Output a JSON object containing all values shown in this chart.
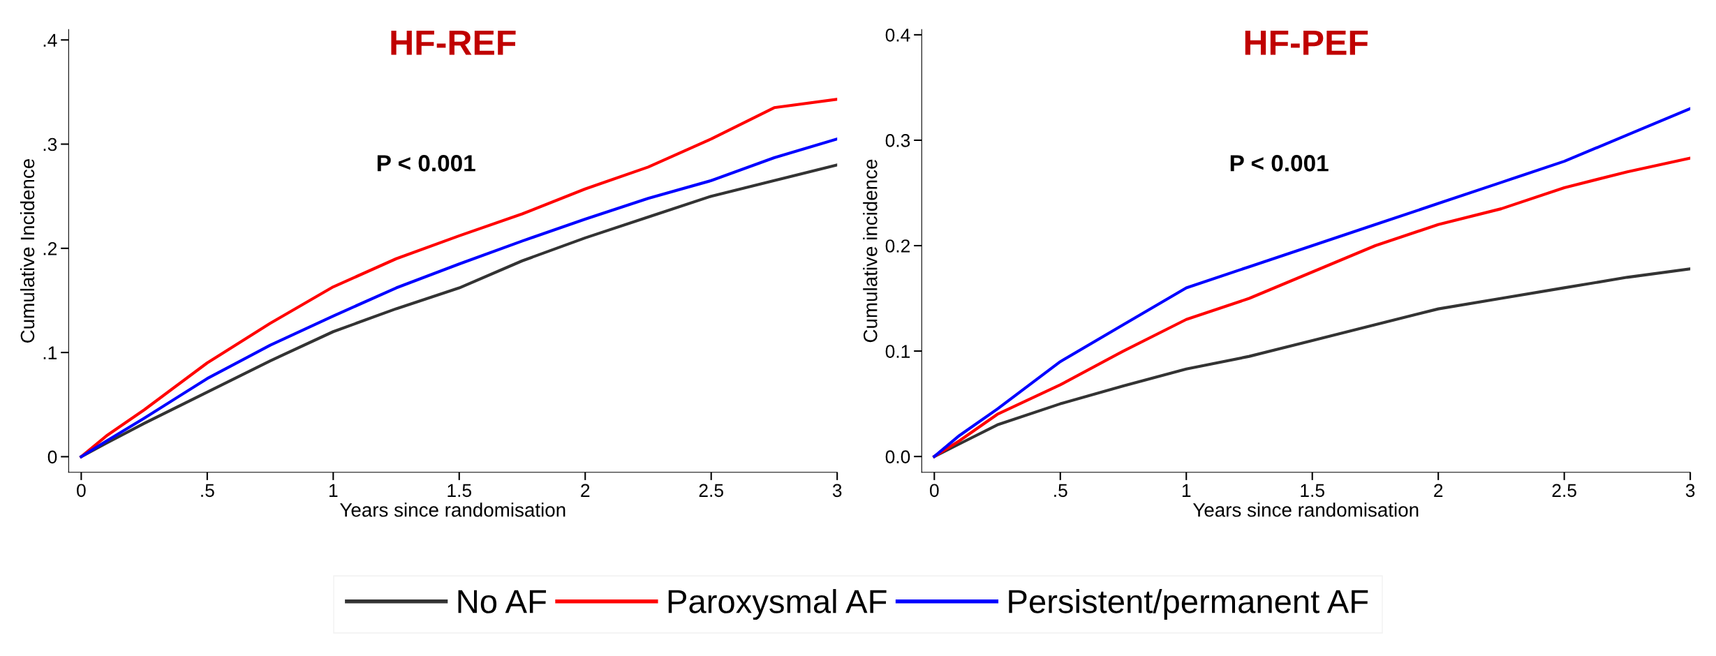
{
  "chart_data": [
    {
      "type": "line",
      "title": "HF-REF",
      "xlabel": "Years since randomisation",
      "ylabel": "Cumulative Incidence",
      "annotations": [
        "P < 0.001"
      ],
      "x": [
        0,
        0.1,
        0.25,
        0.5,
        0.75,
        1,
        1.25,
        1.5,
        1.75,
        2,
        2.25,
        2.5,
        2.75,
        3
      ],
      "series": [
        {
          "name": "No AF",
          "color": "#333333",
          "values": [
            0,
            0.013,
            0.032,
            0.062,
            0.092,
            0.12,
            0.142,
            0.162,
            0.188,
            0.21,
            0.23,
            0.25,
            0.265,
            0.28
          ]
        },
        {
          "name": "Paroxysmal AF",
          "color": "#ff0000",
          "values": [
            0,
            0.02,
            0.045,
            0.09,
            0.128,
            0.163,
            0.19,
            0.212,
            0.233,
            0.257,
            0.278,
            0.305,
            0.335,
            0.343
          ]
        },
        {
          "name": "Persistent/permanent AF",
          "color": "#0000ff",
          "values": [
            0,
            0.015,
            0.037,
            0.075,
            0.107,
            0.135,
            0.162,
            0.185,
            0.207,
            0.228,
            0.248,
            0.265,
            0.287,
            0.305
          ]
        }
      ],
      "xlim": [
        -0.05,
        3.0
      ],
      "ylim": [
        -0.015,
        0.41
      ],
      "xticks": [
        0,
        {
          "value": 0.5,
          "label": ".5"
        },
        1,
        1.5,
        2,
        2.5,
        3
      ],
      "yticks": [
        0,
        {
          "value": 0.1,
          "label": ".1"
        },
        {
          "value": 0.2,
          "label": ".2"
        },
        {
          "value": 0.3,
          "label": ".3"
        },
        {
          "value": 0.4,
          "label": ".4"
        }
      ],
      "legend": "bottom",
      "grid": false
    },
    {
      "type": "line",
      "title": "HF-PEF",
      "xlabel": "Years since randomisation",
      "ylabel": "Cumulative incidence",
      "annotations": [
        "P < 0.001"
      ],
      "x": [
        0,
        0.1,
        0.25,
        0.5,
        0.75,
        1,
        1.25,
        1.5,
        1.75,
        2,
        2.25,
        2.5,
        2.75,
        3
      ],
      "series": [
        {
          "color": "#333333",
          "values": [
            0,
            0.012,
            0.03,
            0.05,
            0.067,
            0.083,
            0.095,
            0.11,
            0.125,
            0.14,
            0.15,
            0.16,
            0.17,
            0.178
          ]
        },
        {
          "color": "#ff0000",
          "values": [
            0,
            0.015,
            0.04,
            0.068,
            0.1,
            0.13,
            0.15,
            0.175,
            0.2,
            0.22,
            0.235,
            0.255,
            0.27,
            0.283
          ]
        },
        {
          "color": "#0000ff",
          "values": [
            0,
            0.02,
            0.045,
            0.09,
            0.125,
            0.16,
            0.18,
            0.2,
            0.22,
            0.24,
            0.26,
            0.28,
            0.305,
            0.33
          ]
        }
      ],
      "xlim": [
        -0.05,
        3.0
      ],
      "ylim": [
        -0.015,
        0.405
      ],
      "xticks": [
        0,
        {
          "value": 0.5,
          "label": ".5"
        },
        1,
        1.5,
        2,
        2.5,
        3
      ],
      "yticks": [
        {
          "value": 0,
          "label": "0.0"
        },
        {
          "value": 0.1,
          "label": "0.1"
        },
        {
          "value": 0.2,
          "label": "0.2"
        },
        {
          "value": 0.3,
          "label": "0.3"
        },
        {
          "value": 0.4,
          "label": "0.4"
        }
      ],
      "grid": false
    }
  ]
}
